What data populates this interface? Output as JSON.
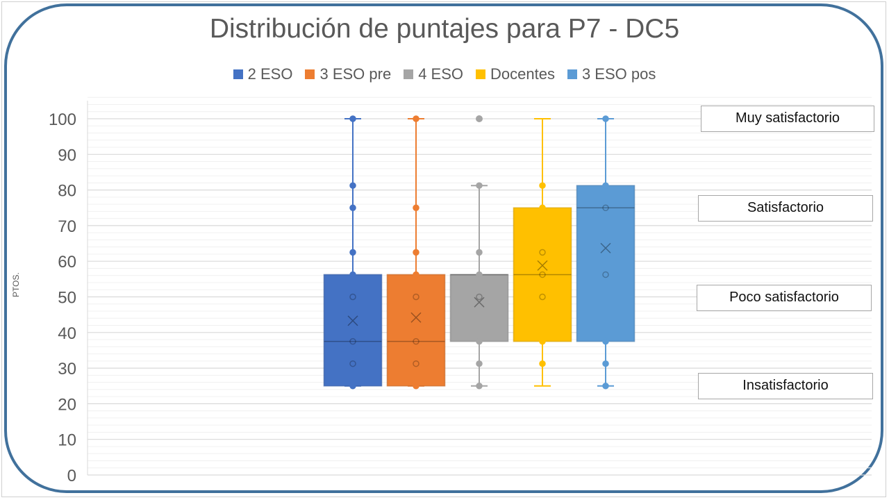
{
  "chart_data": {
    "type": "boxplot",
    "title": "Distribución de puntajes para P7 - DC5",
    "ylabel": "PTOS.",
    "xlabel": "",
    "ylim": [
      0,
      100
    ],
    "yticks": [
      0,
      10,
      20,
      30,
      40,
      50,
      60,
      70,
      80,
      90,
      100
    ],
    "grid": true,
    "legend_position": "top",
    "series": [
      {
        "name": "2 ESO",
        "color": "#4472c4",
        "min": 25,
        "q1": 25,
        "median": 37.5,
        "q3": 56.25,
        "max": 100,
        "mean": 43.3,
        "outliers": [],
        "points": [
          25,
          31.25,
          37.5,
          50,
          56.25,
          62.5,
          75,
          81.25,
          100
        ]
      },
      {
        "name": "3 ESO pre",
        "color": "#ed7d31",
        "min": 25,
        "q1": 25,
        "median": 37.5,
        "q3": 56.25,
        "max": 100,
        "mean": 44.2,
        "outliers": [],
        "points": [
          25,
          31.25,
          37.5,
          50,
          56.25,
          62.5,
          75,
          100
        ]
      },
      {
        "name": "4 ESO",
        "color": "#a5a5a5",
        "min": 25,
        "q1": 37.5,
        "median": 56.25,
        "q3": 56.25,
        "max": 81.25,
        "mean": 48.5,
        "outliers": [
          100
        ],
        "points": [
          25,
          31.25,
          37.5,
          50,
          56.25,
          62.5,
          81.25
        ]
      },
      {
        "name": "Docentes",
        "color": "#ffc000",
        "min": 25,
        "q1": 37.5,
        "median": 56.25,
        "q3": 75,
        "max": 100,
        "mean": 58.8,
        "outliers": [],
        "points": [
          31.25,
          37.5,
          50,
          56.25,
          62.5,
          75,
          81.25
        ]
      },
      {
        "name": "3 ESO pos",
        "color": "#5b9bd5",
        "min": 25,
        "q1": 37.5,
        "median": 75,
        "q3": 81.25,
        "max": 100,
        "mean": 63.7,
        "outliers": [],
        "points": [
          25,
          31.25,
          37.5,
          56.25,
          75,
          81.25,
          100
        ]
      }
    ],
    "annotations": [
      "Muy satisfactorio",
      "Satisfactorio",
      "Poco satisfactorio",
      "Insatisfactorio"
    ]
  },
  "frame_color": "#41719c"
}
